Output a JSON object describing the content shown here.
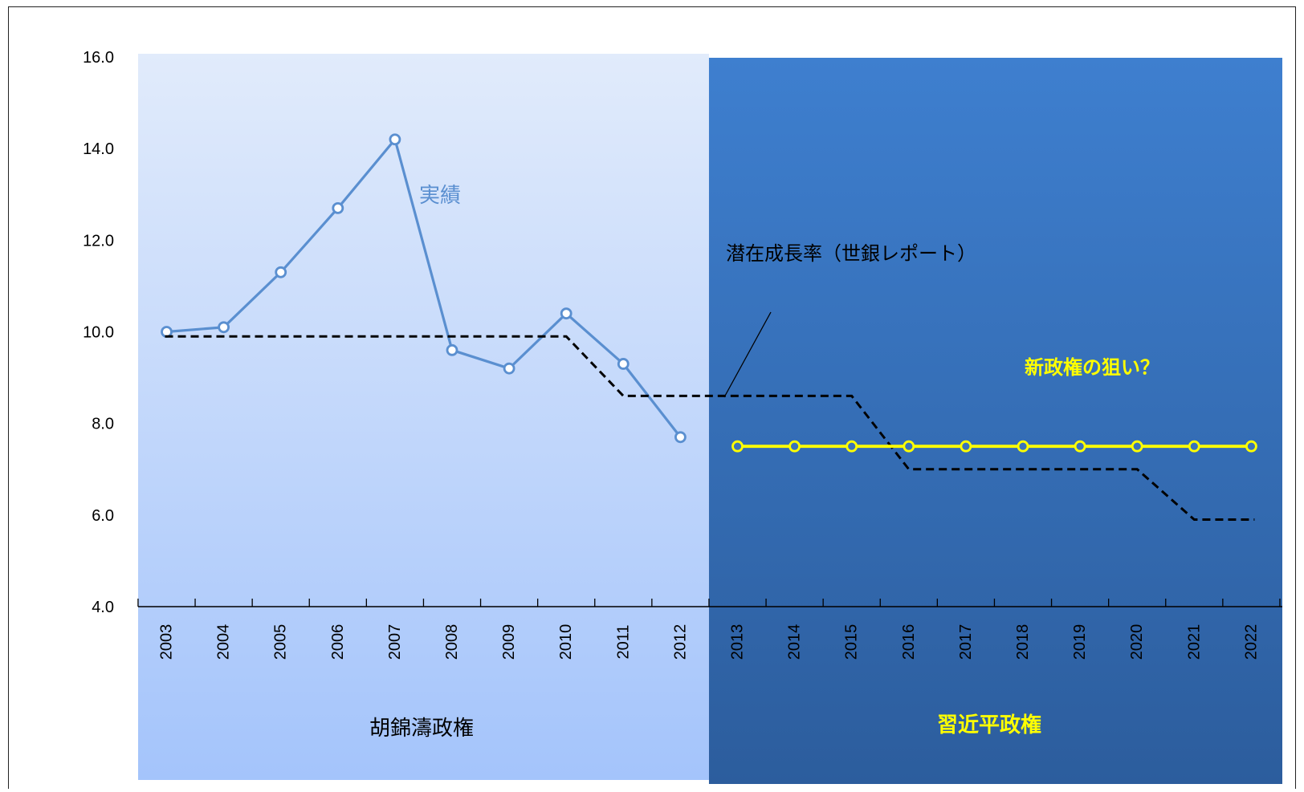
{
  "chart_data": {
    "type": "line",
    "title": "",
    "xlabel": "",
    "ylabel": "",
    "ylim": [
      4.0,
      16.0
    ],
    "y_ticks": [
      "4.0",
      "6.0",
      "8.0",
      "10.0",
      "12.0",
      "14.0",
      "16.0"
    ],
    "x": [
      "2003",
      "2004",
      "2005",
      "2006",
      "2007",
      "2008",
      "2009",
      "2010",
      "2011",
      "2012",
      "2013",
      "2014",
      "2015",
      "2016",
      "2017",
      "2018",
      "2019",
      "2020",
      "2021",
      "2022"
    ],
    "series": [
      {
        "name": "実績",
        "color": "#5a8fd0",
        "style": "solid-markers",
        "values": [
          10.0,
          10.1,
          11.3,
          12.7,
          14.2,
          9.6,
          9.2,
          10.4,
          9.3,
          7.7,
          null,
          null,
          null,
          null,
          null,
          null,
          null,
          null,
          null,
          null
        ]
      },
      {
        "name": "潜在成長率（世銀レポート）",
        "color": "#000000",
        "style": "dashed",
        "values": [
          9.9,
          9.9,
          9.9,
          9.9,
          9.9,
          9.9,
          9.9,
          9.9,
          8.6,
          8.6,
          8.6,
          8.6,
          8.6,
          7.0,
          7.0,
          7.0,
          7.0,
          7.0,
          5.9,
          5.9
        ]
      },
      {
        "name": "新政権の狙い？",
        "color": "#ffff00",
        "style": "solid-markers",
        "values": [
          null,
          null,
          null,
          null,
          null,
          null,
          null,
          null,
          null,
          null,
          7.5,
          7.5,
          7.5,
          7.5,
          7.5,
          7.5,
          7.5,
          7.5,
          7.5,
          7.5
        ]
      }
    ],
    "regions": [
      {
        "label": "胡錦濤政権",
        "from": "2003",
        "to": "2012",
        "color_top": "#e1ebfb",
        "color_bottom": "#a4c4fb",
        "label_color": "#000000"
      },
      {
        "label": "習近平政権",
        "from": "2013",
        "to": "2022",
        "color_top": "#3e7fcf",
        "color_bottom": "#2c5d9d",
        "label_color": "#ffff00"
      }
    ],
    "annotations": [
      {
        "text": "実績",
        "color": "#5a8fd0"
      },
      {
        "text": "潜在成長率（世銀レポート）",
        "color": "#000000"
      },
      {
        "text": "新政権の狙い？",
        "color": "#ffff00"
      }
    ],
    "grid": false,
    "legend": "none"
  }
}
